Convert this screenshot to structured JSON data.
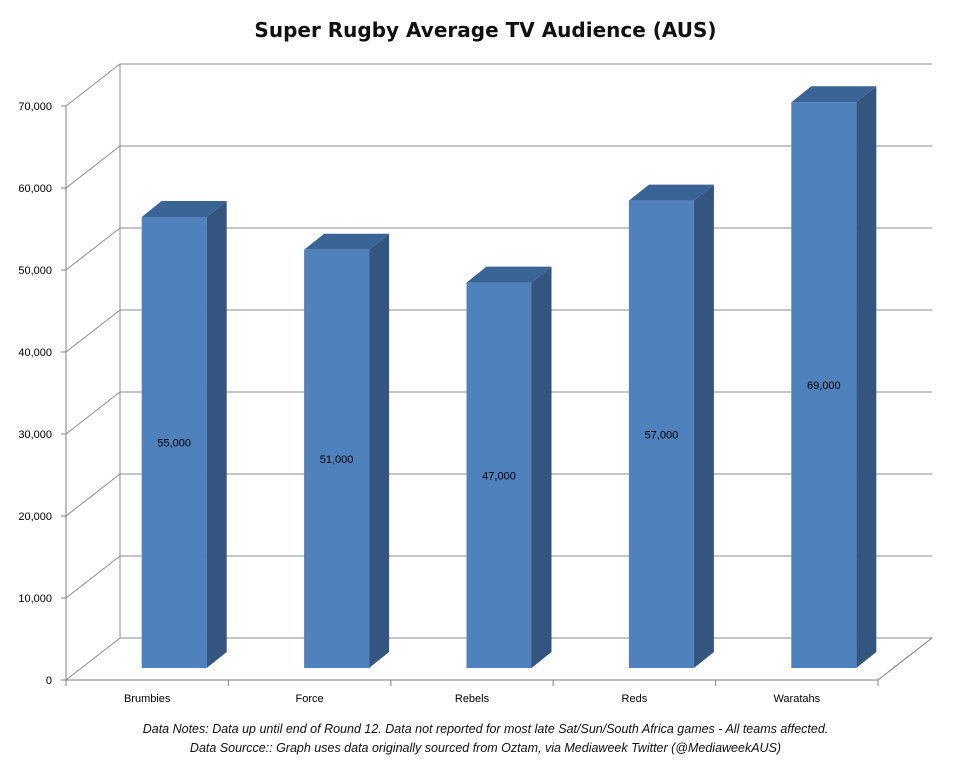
{
  "chart_data": {
    "type": "bar",
    "title": "Super Rugby Average TV Audience (AUS)",
    "categories": [
      "Brumbies",
      "Force",
      "Rebels",
      "Reds",
      "Waratahs"
    ],
    "values": [
      55000,
      51000,
      47000,
      57000,
      69000
    ],
    "value_labels": [
      "55,000",
      "51,000",
      "47,000",
      "57,000",
      "69,000"
    ],
    "y_ticks": [
      0,
      10000,
      20000,
      30000,
      40000,
      50000,
      60000,
      70000
    ],
    "y_tick_labels": [
      "0",
      "10,000",
      "20,000",
      "30,000",
      "40,000",
      "50,000",
      "60,000",
      "70,000"
    ],
    "ylim": [
      0,
      70000
    ],
    "grid": true,
    "three_d": true,
    "legend": "none"
  },
  "notes": {
    "line1": "Data Notes: Data up until end of Round 12. Data not reported for most late Sat/Sun/South Africa games - All teams affected.",
    "line2": "Data Sourcce:: Graph uses data originally sourced from Oztam, via Mediaweek Twitter (@MediaweekAUS)"
  },
  "colors": {
    "bar_front": "#4f81bd",
    "bar_side": "#34557f",
    "bar_top": "#3b6496",
    "grid": "#8c8c8c"
  }
}
